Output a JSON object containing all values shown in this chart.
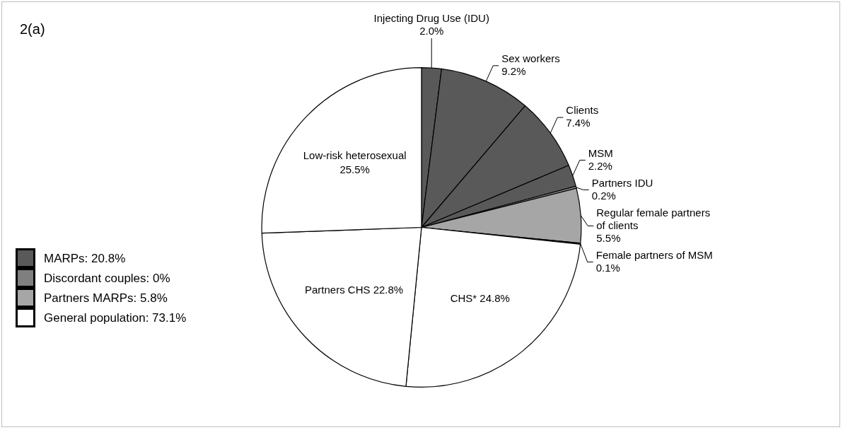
{
  "chart_data": {
    "type": "pie",
    "title": "2(a)",
    "categories": [
      "Injecting Drug Use (IDU)",
      "Sex workers",
      "Clients",
      "MSM",
      "Partners IDU",
      "Regular female partners of clients",
      "Female partners of MSM",
      "CHS*",
      "Partners CHS",
      "Low-risk heterosexual"
    ],
    "values": [
      2.0,
      9.2,
      7.4,
      2.2,
      0.2,
      5.5,
      0.1,
      24.8,
      22.8,
      25.5
    ],
    "colors": [
      "#595959",
      "#595959",
      "#595959",
      "#595959",
      "#a6a6a6",
      "#a6a6a6",
      "#a6a6a6",
      "#ffffff",
      "#ffffff",
      "#ffffff"
    ],
    "value_labels": [
      "2.0%",
      "9.2%",
      "7.4%",
      "2.2%",
      "0.2%",
      "5.5%",
      "0.1%",
      "24.8%",
      "22.8%",
      "25.5%"
    ],
    "annotations": [
      "MARPs: 20.8%",
      "Discordant couples: 0%",
      "Partners MARPs: 5.8%",
      "General population: 73.1%"
    ],
    "legend": false
  }
}
